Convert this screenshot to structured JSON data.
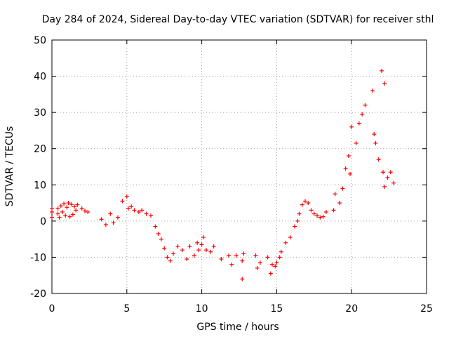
{
  "chart_data": {
    "type": "scatter",
    "title": "Day 284 of 2024, Sidereal Day-to-day VTEC variation (SDTVAR) for receiver sthl",
    "xlabel": "GPS time / hours",
    "ylabel": "SDTVAR / TECUs",
    "xlim": [
      0,
      25
    ],
    "ylim": [
      -20,
      50
    ],
    "xticks": [
      0,
      5,
      10,
      15,
      20,
      25
    ],
    "yticks": [
      -20,
      -10,
      0,
      10,
      20,
      30,
      40,
      50
    ],
    "grid": true,
    "marker": "+",
    "color": "#ff0000",
    "series": [
      {
        "name": "SDTVAR",
        "points": [
          [
            0.0,
            1.0
          ],
          [
            0.0,
            2.5
          ],
          [
            0.0,
            3.5
          ],
          [
            0.4,
            2.0
          ],
          [
            0.4,
            3.5
          ],
          [
            0.5,
            1.0
          ],
          [
            0.6,
            4.2
          ],
          [
            0.7,
            2.5
          ],
          [
            0.8,
            4.8
          ],
          [
            0.9,
            1.5
          ],
          [
            1.0,
            3.8
          ],
          [
            1.1,
            5.0
          ],
          [
            1.2,
            1.2
          ],
          [
            1.3,
            4.6
          ],
          [
            1.4,
            1.8
          ],
          [
            1.5,
            4.0
          ],
          [
            1.6,
            3.0
          ],
          [
            1.7,
            4.5
          ],
          [
            2.0,
            3.5
          ],
          [
            2.2,
            2.8
          ],
          [
            2.4,
            2.5
          ],
          [
            3.3,
            0.5
          ],
          [
            3.6,
            -1.0
          ],
          [
            3.9,
            2.0
          ],
          [
            4.1,
            -0.5
          ],
          [
            4.4,
            1.0
          ],
          [
            4.7,
            5.5
          ],
          [
            5.0,
            6.8
          ],
          [
            5.1,
            3.5
          ],
          [
            5.3,
            4.0
          ],
          [
            5.5,
            3.0
          ],
          [
            5.8,
            2.5
          ],
          [
            6.0,
            3.0
          ],
          [
            6.3,
            2.0
          ],
          [
            6.6,
            1.5
          ],
          [
            6.9,
            -1.5
          ],
          [
            7.1,
            -3.5
          ],
          [
            7.3,
            -5.0
          ],
          [
            7.5,
            -7.5
          ],
          [
            7.7,
            -10.0
          ],
          [
            7.9,
            -11.0
          ],
          [
            8.1,
            -9.0
          ],
          [
            8.4,
            -7.0
          ],
          [
            8.7,
            -8.0
          ],
          [
            9.0,
            -10.5
          ],
          [
            9.2,
            -7.0
          ],
          [
            9.5,
            -9.5
          ],
          [
            9.7,
            -6.0
          ],
          [
            9.8,
            -8.0
          ],
          [
            10.0,
            -6.5
          ],
          [
            10.1,
            -4.5
          ],
          [
            10.3,
            -8.0
          ],
          [
            10.6,
            -8.5
          ],
          [
            10.8,
            -7.0
          ],
          [
            11.3,
            -10.5
          ],
          [
            11.8,
            -9.5
          ],
          [
            12.0,
            -12.0
          ],
          [
            12.3,
            -9.5
          ],
          [
            12.7,
            -11.0
          ],
          [
            12.7,
            -16.0
          ],
          [
            12.8,
            -9.0
          ],
          [
            13.6,
            -9.5
          ],
          [
            13.7,
            -13.0
          ],
          [
            13.9,
            -11.5
          ],
          [
            14.4,
            -10.0
          ],
          [
            14.6,
            -14.5
          ],
          [
            14.7,
            -12.0
          ],
          [
            14.9,
            -12.5
          ],
          [
            15.0,
            -11.5
          ],
          [
            15.2,
            -10.0
          ],
          [
            15.3,
            -8.5
          ],
          [
            15.6,
            -6.0
          ],
          [
            15.9,
            -4.5
          ],
          [
            16.2,
            -1.5
          ],
          [
            16.4,
            0.0
          ],
          [
            16.5,
            2.0
          ],
          [
            16.7,
            4.5
          ],
          [
            16.9,
            5.5
          ],
          [
            17.1,
            5.0
          ],
          [
            17.3,
            3.0
          ],
          [
            17.5,
            2.0
          ],
          [
            17.7,
            1.5
          ],
          [
            17.9,
            1.0
          ],
          [
            18.1,
            1.2
          ],
          [
            18.3,
            2.5
          ],
          [
            18.8,
            3.0
          ],
          [
            18.9,
            7.5
          ],
          [
            19.2,
            5.0
          ],
          [
            19.4,
            9.0
          ],
          [
            19.6,
            14.5
          ],
          [
            19.8,
            18.0
          ],
          [
            19.9,
            13.0
          ],
          [
            20.0,
            26.0
          ],
          [
            20.3,
            21.5
          ],
          [
            20.5,
            27.0
          ],
          [
            20.7,
            29.5
          ],
          [
            20.9,
            32.0
          ],
          [
            21.4,
            36.0
          ],
          [
            21.5,
            24.0
          ],
          [
            21.6,
            21.5
          ],
          [
            21.8,
            17.0
          ],
          [
            22.0,
            41.5
          ],
          [
            22.1,
            13.5
          ],
          [
            22.2,
            38.0
          ],
          [
            22.2,
            9.5
          ],
          [
            22.4,
            12.0
          ],
          [
            22.6,
            13.5
          ],
          [
            22.8,
            10.5
          ]
        ]
      }
    ]
  }
}
